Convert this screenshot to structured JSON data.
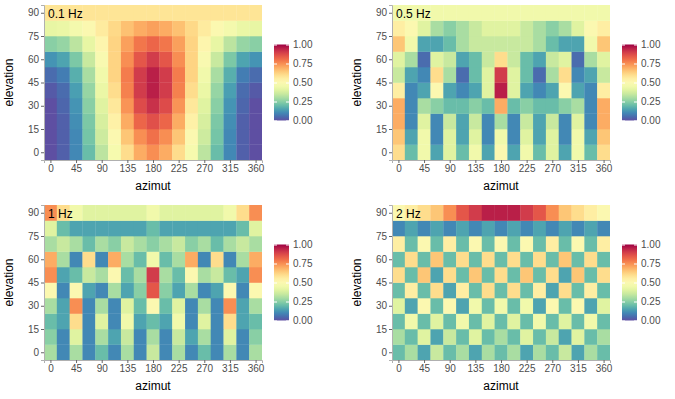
{
  "chart_data": [
    {
      "type": "heatmap",
      "title": "0.1 Hz",
      "x_label": "azimut",
      "y_label": "elevation",
      "xlim": [
        -11.25,
        371.25
      ],
      "ylim": [
        -5,
        95
      ],
      "xticks": [
        0,
        45,
        90,
        135,
        180,
        225,
        270,
        315,
        360
      ],
      "yticks": [
        0,
        15,
        30,
        45,
        60,
        75,
        90
      ],
      "x": [
        0,
        22.5,
        45,
        67.5,
        90,
        112.5,
        135,
        157.5,
        180,
        202.5,
        225,
        247.5,
        270,
        292.5,
        315,
        337.5,
        360
      ],
      "y": [
        0,
        10,
        20,
        30,
        40,
        50,
        60,
        70,
        80,
        90
      ],
      "values": [
        [
          0,
          0.03,
          0.1,
          0.2,
          0.33,
          0.47,
          0.6,
          0.7,
          0.75,
          0.7,
          0.6,
          0.47,
          0.33,
          0.2,
          0.1,
          0.03,
          0
        ],
        [
          0,
          0.03,
          0.1,
          0.22,
          0.36,
          0.5,
          0.65,
          0.75,
          0.8,
          0.75,
          0.65,
          0.5,
          0.36,
          0.22,
          0.1,
          0.03,
          0
        ],
        [
          0,
          0.03,
          0.11,
          0.23,
          0.38,
          0.54,
          0.7,
          0.82,
          0.86,
          0.82,
          0.7,
          0.54,
          0.38,
          0.23,
          0.11,
          0.03,
          0
        ],
        [
          0,
          0.04,
          0.12,
          0.25,
          0.4,
          0.57,
          0.74,
          0.87,
          0.92,
          0.87,
          0.74,
          0.57,
          0.4,
          0.25,
          0.12,
          0.04,
          0
        ],
        [
          0.02,
          0.05,
          0.14,
          0.27,
          0.43,
          0.6,
          0.77,
          0.9,
          0.95,
          0.9,
          0.77,
          0.6,
          0.43,
          0.27,
          0.14,
          0.05,
          0.02
        ],
        [
          0.05,
          0.08,
          0.17,
          0.3,
          0.45,
          0.62,
          0.78,
          0.9,
          0.95,
          0.9,
          0.78,
          0.62,
          0.45,
          0.3,
          0.17,
          0.08,
          0.05
        ],
        [
          0.12,
          0.15,
          0.23,
          0.35,
          0.48,
          0.62,
          0.75,
          0.85,
          0.9,
          0.85,
          0.75,
          0.62,
          0.48,
          0.35,
          0.23,
          0.15,
          0.12
        ],
        [
          0.25,
          0.27,
          0.33,
          0.42,
          0.52,
          0.62,
          0.72,
          0.79,
          0.82,
          0.79,
          0.72,
          0.62,
          0.52,
          0.42,
          0.33,
          0.27,
          0.25
        ],
        [
          0.42,
          0.43,
          0.46,
          0.5,
          0.56,
          0.61,
          0.66,
          0.7,
          0.72,
          0.7,
          0.66,
          0.61,
          0.56,
          0.5,
          0.46,
          0.43,
          0.42
        ],
        [
          0.58,
          0.58,
          0.58,
          0.58,
          0.58,
          0.58,
          0.58,
          0.58,
          0.58,
          0.58,
          0.58,
          0.58,
          0.58,
          0.58,
          0.58,
          0.58,
          0.58
        ]
      ],
      "color_range": [
        0,
        1
      ],
      "color_ticks": [
        {
          "value": 0,
          "label": "0.00"
        },
        {
          "value": 0.25,
          "label": "0.25"
        },
        {
          "value": 0.5,
          "label": "0.50"
        },
        {
          "value": 0.75,
          "label": "0.75"
        },
        {
          "value": 1,
          "label": "1.00"
        }
      ]
    },
    {
      "type": "heatmap",
      "title": "0.5 Hz",
      "x_label": "azimut",
      "y_label": "elevation",
      "xlim": [
        -11.25,
        371.25
      ],
      "ylim": [
        -5,
        95
      ],
      "xticks": [
        0,
        45,
        90,
        135,
        180,
        225,
        270,
        315,
        360
      ],
      "yticks": [
        0,
        15,
        30,
        45,
        60,
        75,
        90
      ],
      "x": [
        0,
        22.5,
        45,
        67.5,
        90,
        112.5,
        135,
        157.5,
        180,
        202.5,
        225,
        247.5,
        270,
        292.5,
        315,
        337.5,
        360
      ],
      "y": [
        0,
        10,
        20,
        30,
        40,
        50,
        60,
        70,
        80,
        90
      ],
      "values": [
        [
          0.6,
          0.2,
          0.45,
          0.15,
          0.4,
          0.2,
          0.45,
          0.15,
          0.5,
          0.15,
          0.45,
          0.2,
          0.4,
          0.15,
          0.45,
          0.2,
          0.6
        ],
        [
          0.65,
          0.15,
          0.45,
          0.1,
          0.4,
          0.15,
          0.4,
          0.1,
          0.45,
          0.1,
          0.4,
          0.15,
          0.4,
          0.1,
          0.45,
          0.15,
          0.65
        ],
        [
          0.7,
          0.1,
          0.4,
          0.1,
          0.35,
          0.15,
          0.35,
          0.1,
          0.3,
          0.1,
          0.35,
          0.15,
          0.35,
          0.1,
          0.4,
          0.1,
          0.7
        ],
        [
          0.7,
          0.1,
          0.3,
          0.25,
          0.2,
          0.2,
          0.25,
          0.2,
          0.7,
          0.2,
          0.25,
          0.2,
          0.2,
          0.25,
          0.3,
          0.1,
          0.7
        ],
        [
          0.55,
          0.1,
          0.15,
          0.5,
          0.15,
          0.1,
          0.15,
          0.4,
          0.95,
          0.4,
          0.15,
          0.1,
          0.15,
          0.5,
          0.15,
          0.1,
          0.55
        ],
        [
          0.35,
          0.15,
          0.1,
          0.6,
          0.3,
          0.05,
          0.2,
          0.4,
          0.9,
          0.4,
          0.2,
          0.05,
          0.3,
          0.6,
          0.1,
          0.15,
          0.35
        ],
        [
          0.4,
          0.3,
          0.05,
          0.4,
          0.35,
          0.15,
          0.2,
          0.35,
          0.6,
          0.35,
          0.2,
          0.15,
          0.35,
          0.4,
          0.05,
          0.3,
          0.4
        ],
        [
          0.65,
          0.45,
          0.15,
          0.15,
          0.2,
          0.3,
          0.35,
          0.35,
          0.35,
          0.35,
          0.35,
          0.3,
          0.2,
          0.15,
          0.15,
          0.45,
          0.65
        ],
        [
          0.55,
          0.5,
          0.4,
          0.3,
          0.25,
          0.3,
          0.35,
          0.4,
          0.4,
          0.4,
          0.35,
          0.3,
          0.25,
          0.3,
          0.4,
          0.5,
          0.55
        ],
        [
          0.45,
          0.45,
          0.45,
          0.45,
          0.45,
          0.45,
          0.45,
          0.45,
          0.45,
          0.45,
          0.45,
          0.45,
          0.45,
          0.45,
          0.45,
          0.45,
          0.45
        ]
      ],
      "color_range": [
        0,
        1
      ],
      "color_ticks": [
        {
          "value": 0,
          "label": "0.00"
        },
        {
          "value": 0.25,
          "label": "0.25"
        },
        {
          "value": 0.5,
          "label": "0.50"
        },
        {
          "value": 0.75,
          "label": "0.75"
        },
        {
          "value": 1,
          "label": "1.00"
        }
      ]
    },
    {
      "type": "heatmap",
      "title": "1 Hz",
      "x_label": "azimut",
      "y_label": "elevation",
      "xlim": [
        -11.25,
        371.25
      ],
      "ylim": [
        -5,
        95
      ],
      "xticks": [
        0,
        45,
        90,
        135,
        180,
        225,
        270,
        315,
        360
      ],
      "yticks": [
        0,
        15,
        30,
        45,
        60,
        75,
        90
      ],
      "x": [
        0,
        22.5,
        45,
        67.5,
        90,
        112.5,
        135,
        157.5,
        180,
        202.5,
        225,
        247.5,
        270,
        292.5,
        315,
        337.5,
        360
      ],
      "y": [
        0,
        10,
        20,
        30,
        40,
        50,
        60,
        70,
        80,
        90
      ],
      "values": [
        [
          0.3,
          0.1,
          0.3,
          0.1,
          0.2,
          0.1,
          0.3,
          0.1,
          0.35,
          0.1,
          0.3,
          0.1,
          0.2,
          0.1,
          0.3,
          0.1,
          0.3
        ],
        [
          0.25,
          0.1,
          0.4,
          0.1,
          0.3,
          0.15,
          0.35,
          0.1,
          0.3,
          0.1,
          0.35,
          0.15,
          0.3,
          0.1,
          0.4,
          0.1,
          0.25
        ],
        [
          0.2,
          0.15,
          0.6,
          0.1,
          0.4,
          0.1,
          0.45,
          0.15,
          0.2,
          0.15,
          0.45,
          0.1,
          0.4,
          0.1,
          0.6,
          0.15,
          0.2
        ],
        [
          0.3,
          0.15,
          0.75,
          0.1,
          0.3,
          0.1,
          0.4,
          0.2,
          0.5,
          0.2,
          0.4,
          0.1,
          0.3,
          0.1,
          0.75,
          0.15,
          0.3
        ],
        [
          0.5,
          0.1,
          0.5,
          0.15,
          0.1,
          0.3,
          0.15,
          0.25,
          0.85,
          0.25,
          0.15,
          0.3,
          0.1,
          0.15,
          0.5,
          0.1,
          0.5
        ],
        [
          0.75,
          0.15,
          0.2,
          0.35,
          0.3,
          0.5,
          0.2,
          0.3,
          0.9,
          0.3,
          0.2,
          0.5,
          0.3,
          0.35,
          0.2,
          0.15,
          0.75
        ],
        [
          0.7,
          0.3,
          0.1,
          0.6,
          0.1,
          0.7,
          0.3,
          0.2,
          0.45,
          0.2,
          0.3,
          0.7,
          0.1,
          0.6,
          0.1,
          0.3,
          0.7
        ],
        [
          0.3,
          0.35,
          0.3,
          0.2,
          0.3,
          0.25,
          0.35,
          0.3,
          0.25,
          0.3,
          0.35,
          0.25,
          0.3,
          0.2,
          0.3,
          0.35,
          0.3
        ],
        [
          0.4,
          0.2,
          0.15,
          0.15,
          0.15,
          0.15,
          0.15,
          0.15,
          0.2,
          0.15,
          0.15,
          0.15,
          0.15,
          0.15,
          0.15,
          0.2,
          0.4
        ],
        [
          0.75,
          0.6,
          0.45,
          0.4,
          0.4,
          0.4,
          0.4,
          0.4,
          0.45,
          0.4,
          0.4,
          0.4,
          0.4,
          0.4,
          0.45,
          0.6,
          0.75
        ]
      ],
      "color_range": [
        0,
        1
      ],
      "color_ticks": [
        {
          "value": 0,
          "label": "0.00"
        },
        {
          "value": 0.25,
          "label": "0.25"
        },
        {
          "value": 0.5,
          "label": "0.50"
        },
        {
          "value": 0.75,
          "label": "0.75"
        },
        {
          "value": 1,
          "label": "1.00"
        }
      ]
    },
    {
      "type": "heatmap",
      "title": "2 Hz",
      "x_label": "azimut",
      "y_label": "elevation",
      "xlim": [
        -11.25,
        371.25
      ],
      "ylim": [
        -5,
        95
      ],
      "xticks": [
        0,
        45,
        90,
        135,
        180,
        225,
        270,
        315,
        360
      ],
      "yticks": [
        0,
        15,
        30,
        45,
        60,
        75,
        90
      ],
      "x": [
        0,
        22.5,
        45,
        67.5,
        90,
        112.5,
        135,
        157.5,
        180,
        202.5,
        225,
        247.5,
        270,
        292.5,
        315,
        337.5,
        360
      ],
      "y": [
        0,
        10,
        20,
        30,
        40,
        50,
        60,
        70,
        80,
        90
      ],
      "values": [
        [
          0.2,
          0.3,
          0.15,
          0.35,
          0.2,
          0.3,
          0.15,
          0.3,
          0.2,
          0.3,
          0.15,
          0.3,
          0.2,
          0.35,
          0.15,
          0.3,
          0.2
        ],
        [
          0.3,
          0.2,
          0.4,
          0.15,
          0.35,
          0.2,
          0.4,
          0.2,
          0.3,
          0.2,
          0.4,
          0.2,
          0.35,
          0.15,
          0.4,
          0.2,
          0.3
        ],
        [
          0.2,
          0.45,
          0.2,
          0.4,
          0.2,
          0.45,
          0.2,
          0.4,
          0.2,
          0.4,
          0.2,
          0.45,
          0.2,
          0.4,
          0.2,
          0.45,
          0.2
        ],
        [
          0.4,
          0.15,
          0.5,
          0.2,
          0.5,
          0.15,
          0.45,
          0.2,
          0.45,
          0.2,
          0.45,
          0.15,
          0.5,
          0.2,
          0.5,
          0.15,
          0.4
        ],
        [
          0.2,
          0.55,
          0.2,
          0.6,
          0.15,
          0.55,
          0.2,
          0.6,
          0.2,
          0.6,
          0.2,
          0.55,
          0.15,
          0.6,
          0.2,
          0.55,
          0.2
        ],
        [
          0.6,
          0.2,
          0.65,
          0.15,
          0.6,
          0.2,
          0.65,
          0.2,
          0.6,
          0.2,
          0.65,
          0.2,
          0.6,
          0.15,
          0.65,
          0.2,
          0.6
        ],
        [
          0.2,
          0.6,
          0.2,
          0.65,
          0.2,
          0.6,
          0.2,
          0.6,
          0.2,
          0.6,
          0.2,
          0.6,
          0.2,
          0.65,
          0.2,
          0.6,
          0.2
        ],
        [
          0.55,
          0.2,
          0.5,
          0.2,
          0.55,
          0.2,
          0.5,
          0.2,
          0.5,
          0.2,
          0.5,
          0.2,
          0.55,
          0.2,
          0.5,
          0.2,
          0.55
        ],
        [
          0.1,
          0.15,
          0.1,
          0.15,
          0.1,
          0.15,
          0.1,
          0.15,
          0.1,
          0.15,
          0.1,
          0.15,
          0.1,
          0.15,
          0.1,
          0.15,
          0.1
        ],
        [
          0.5,
          0.55,
          0.6,
          0.65,
          0.75,
          0.85,
          0.9,
          0.95,
          0.95,
          0.95,
          0.9,
          0.85,
          0.75,
          0.65,
          0.6,
          0.55,
          0.5
        ]
      ],
      "color_range": [
        0,
        1
      ],
      "color_ticks": [
        {
          "value": 0,
          "label": "0.00"
        },
        {
          "value": 0.25,
          "label": "0.25"
        },
        {
          "value": 0.5,
          "label": "0.50"
        },
        {
          "value": 0.75,
          "label": "0.75"
        },
        {
          "value": 1,
          "label": "1.00"
        }
      ]
    }
  ]
}
